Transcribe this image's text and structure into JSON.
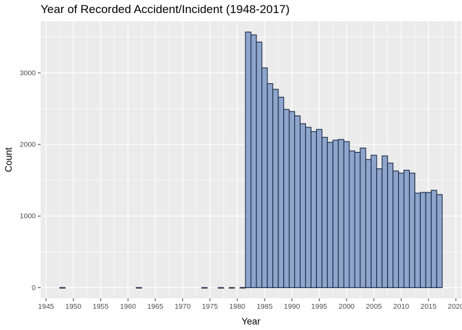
{
  "chart_data": {
    "type": "bar",
    "title": "Year of Recorded Accident/Incident (1948-2017)",
    "xlabel": "Year",
    "ylabel": "Count",
    "xlim": [
      1944,
      2021
    ],
    "ylim": [
      -150,
      3720
    ],
    "x_ticks": [
      1945,
      1950,
      1955,
      1960,
      1965,
      1970,
      1975,
      1980,
      1985,
      1990,
      1995,
      2000,
      2005,
      2010,
      2015,
      2020
    ],
    "y_ticks": [
      0,
      1000,
      2000,
      3000
    ],
    "grid": true,
    "bar_fill": "#8ea5cc",
    "bar_stroke": "#1a2744",
    "panel_background": "#ebebeb",
    "grid_color": "#ffffff",
    "x": [
      1948,
      1962,
      1974,
      1977,
      1979,
      1981,
      1982,
      1983,
      1984,
      1985,
      1986,
      1987,
      1988,
      1989,
      1990,
      1991,
      1992,
      1993,
      1994,
      1995,
      1996,
      1997,
      1998,
      1999,
      2000,
      2001,
      2002,
      2003,
      2004,
      2005,
      2006,
      2007,
      2008,
      2009,
      2010,
      2011,
      2012,
      2013,
      2014,
      2015,
      2016,
      2017
    ],
    "values": [
      1,
      1,
      1,
      1,
      1,
      2,
      3570,
      3530,
      3430,
      3070,
      2850,
      2770,
      2660,
      2490,
      2460,
      2400,
      2290,
      2240,
      2180,
      2210,
      2100,
      2030,
      2060,
      2070,
      2040,
      1910,
      1890,
      1950,
      1790,
      1850,
      1660,
      1840,
      1740,
      1630,
      1600,
      1640,
      1600,
      1320,
      1330,
      1330,
      1360,
      1300
    ]
  }
}
